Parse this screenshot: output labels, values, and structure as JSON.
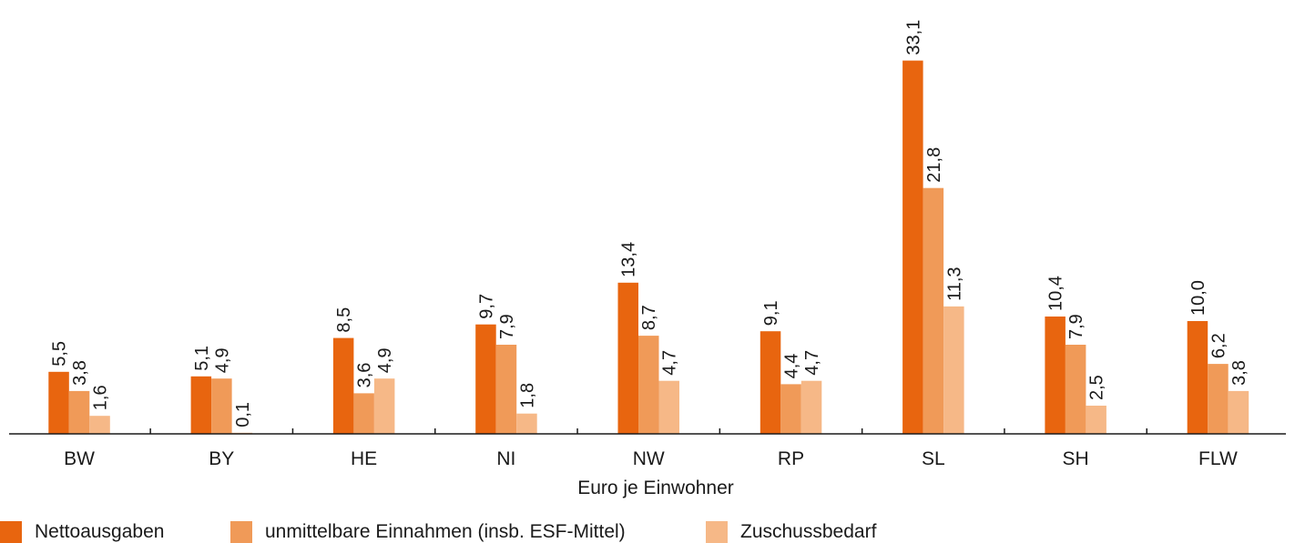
{
  "chart_data": {
    "type": "bar",
    "categories": [
      "BW",
      "BY",
      "HE",
      "NI",
      "NW",
      "RP",
      "SL",
      "SH",
      "FLW"
    ],
    "xlabel": "Euro je Einwohner",
    "ylabel": "",
    "ylim": [
      0,
      35
    ],
    "grid": false,
    "legend_position": "bottom-left",
    "series": [
      {
        "name": "Nettoausgaben",
        "color": "#e8650f",
        "values": [
          5.5,
          5.1,
          8.5,
          9.7,
          13.4,
          9.1,
          33.1,
          10.4,
          10.0
        ],
        "labels": [
          "5,5",
          "5,1",
          "8,5",
          "9,7",
          "13,4",
          "9,1",
          "33,1",
          "10,4",
          "10,0"
        ]
      },
      {
        "name": "unmittelbare Einnahmen (insb. ESF-Mittel)",
        "color": "#f09a58",
        "values": [
          3.8,
          4.9,
          3.6,
          7.9,
          8.7,
          4.4,
          21.8,
          7.9,
          6.2
        ],
        "labels": [
          "3,8",
          "4,9",
          "3,6",
          "7,9",
          "8,7",
          "4,4",
          "21,8",
          "7,9",
          "6,2"
        ]
      },
      {
        "name": "Zuschussbedarf",
        "color": "#f6b887",
        "values": [
          1.6,
          0.1,
          4.9,
          1.8,
          4.7,
          4.7,
          11.3,
          2.5,
          3.8
        ],
        "labels": [
          "1,6",
          "0,1",
          "4,9",
          "1,8",
          "4,7",
          "4,7",
          "11,3",
          "2,5",
          "3,8"
        ]
      }
    ]
  }
}
